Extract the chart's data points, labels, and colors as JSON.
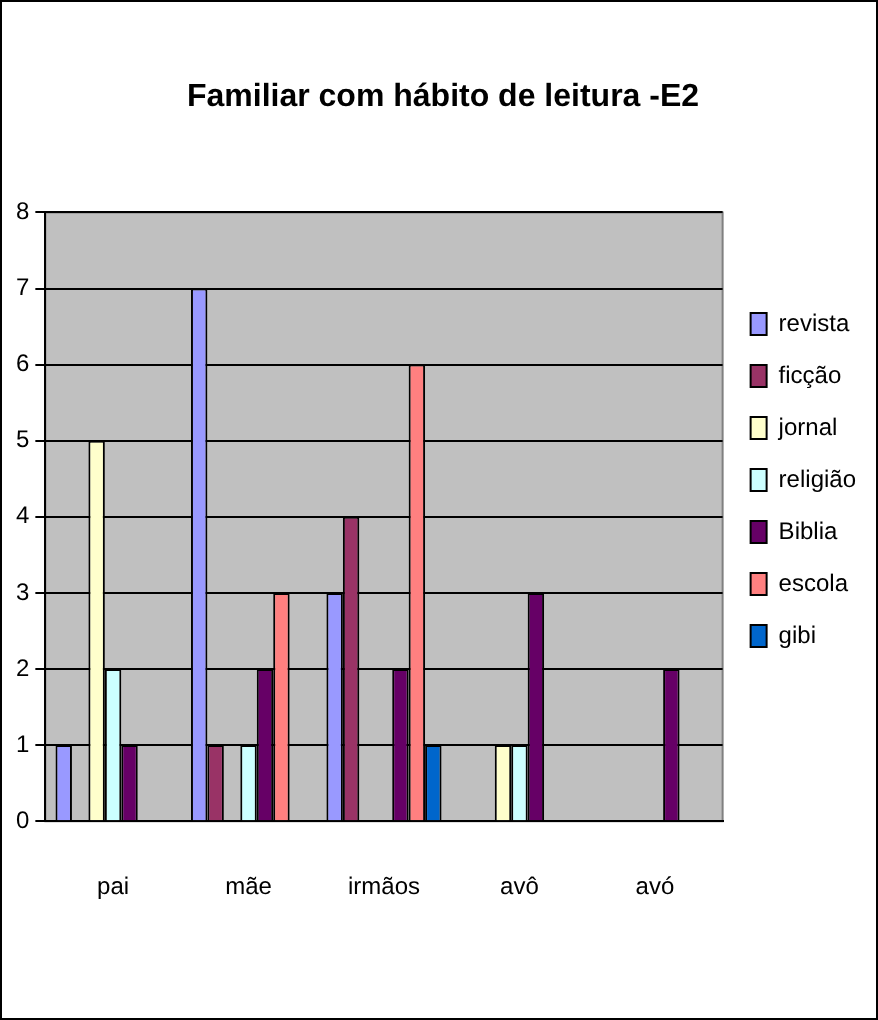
{
  "chart_data": {
    "type": "bar",
    "title": "Familiar com hábito de leitura -E2",
    "categories": [
      "pai",
      "mãe",
      "irmãos",
      "avô",
      "avó"
    ],
    "series": [
      {
        "name": "revista",
        "color": "#9999ff",
        "values": [
          1,
          7,
          3,
          0,
          0
        ]
      },
      {
        "name": "ficção",
        "color": "#993366",
        "values": [
          0,
          1,
          4,
          0,
          0
        ]
      },
      {
        "name": "jornal",
        "color": "#ffffcc",
        "values": [
          5,
          0,
          0,
          1,
          0
        ]
      },
      {
        "name": "religião",
        "color": "#ccffff",
        "values": [
          2,
          1,
          0,
          1,
          0
        ]
      },
      {
        "name": "Biblia",
        "color": "#660066",
        "values": [
          1,
          2,
          2,
          3,
          2
        ]
      },
      {
        "name": "escola",
        "color": "#ff8080",
        "values": [
          0,
          3,
          6,
          0,
          0
        ]
      },
      {
        "name": "gibi",
        "color": "#0066cc",
        "values": [
          0,
          0,
          1,
          0,
          0
        ]
      }
    ],
    "ylim": [
      0,
      8
    ],
    "yticks": [
      0,
      1,
      2,
      3,
      4,
      5,
      6,
      7,
      8
    ],
    "grid": "y",
    "legend": "right"
  }
}
